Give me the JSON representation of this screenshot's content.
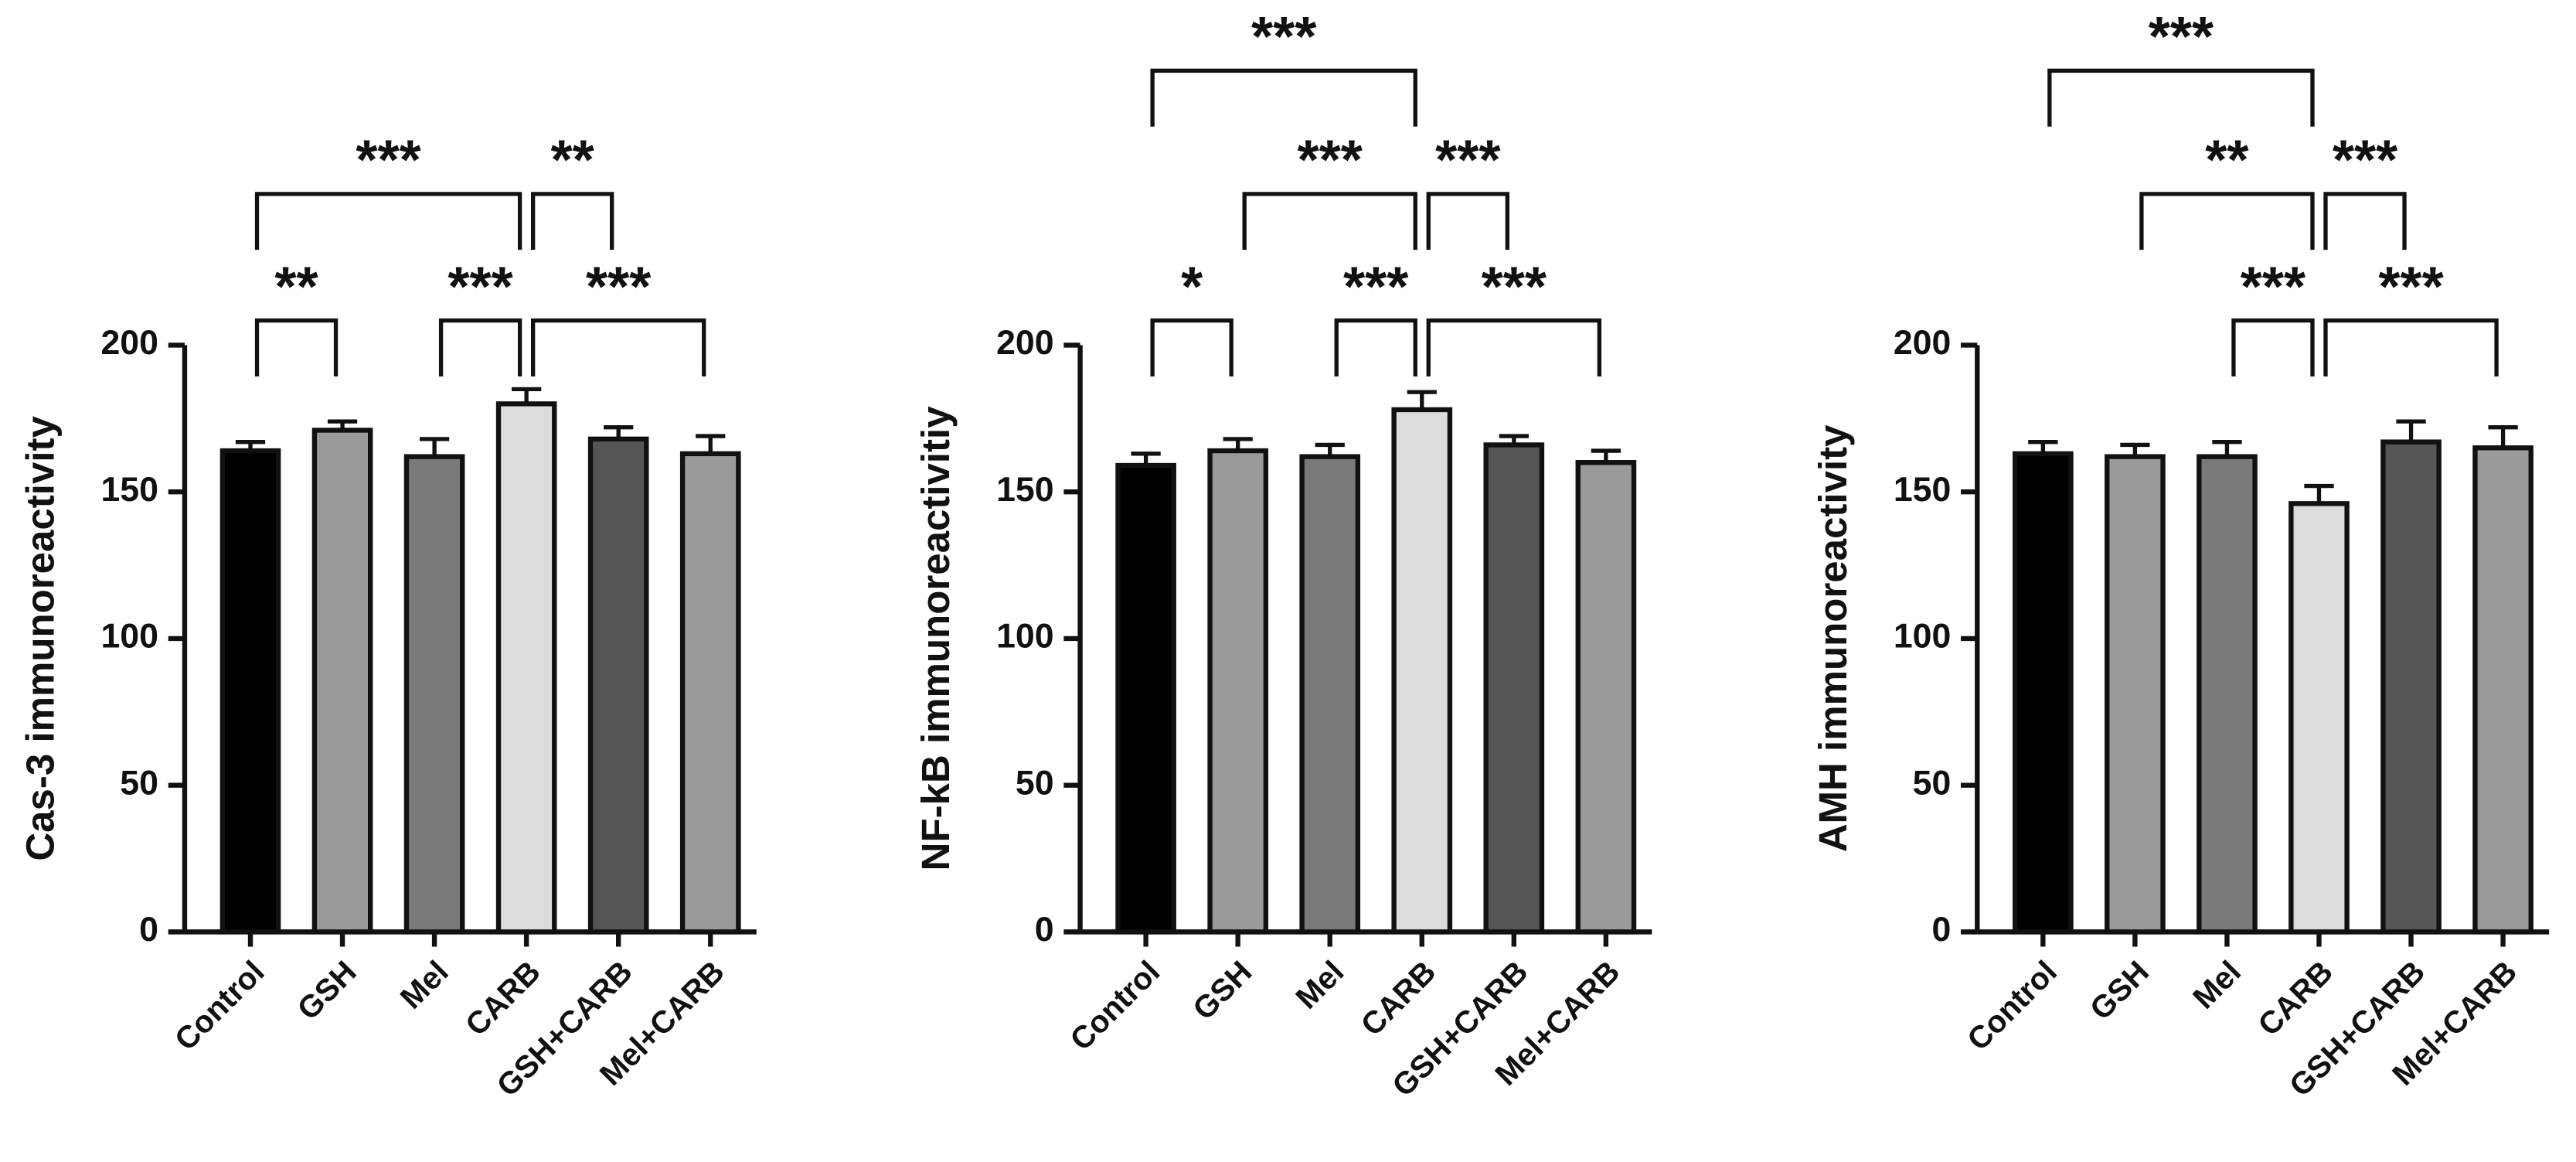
{
  "chart_data": [
    {
      "type": "bar",
      "ylabel": "Cas-3 immunoreactivity",
      "categories": [
        "Control",
        "GSH",
        "Mel",
        "CARB",
        "GSH+CARB",
        "Mel+CARB"
      ],
      "values": [
        164,
        171,
        162,
        180,
        168,
        163
      ],
      "errors": [
        3,
        3,
        6,
        5,
        4,
        6
      ],
      "colors": [
        "#000000",
        "#9a9a9a",
        "#7a7a7a",
        "#dcdcdc",
        "#555555",
        "#9a9a9a"
      ],
      "ylim": [
        0,
        200
      ],
      "yticks": [
        0,
        50,
        100,
        150,
        200
      ],
      "brackets": [
        {
          "from": 0,
          "to": 1,
          "label": "**"
        },
        {
          "from": 2,
          "to": 3,
          "label": "***"
        },
        {
          "from": 3,
          "to": 5,
          "label": "***"
        },
        {
          "from": 0,
          "to": 3,
          "label": "***"
        },
        {
          "from": 3,
          "to": 4,
          "label": "**"
        }
      ]
    },
    {
      "type": "bar",
      "ylabel": "NF-kB immunoreactivitiy",
      "categories": [
        "Control",
        "GSH",
        "Mel",
        "CARB",
        "GSH+CARB",
        "Mel+CARB"
      ],
      "values": [
        159,
        164,
        162,
        178,
        166,
        160
      ],
      "errors": [
        4,
        4,
        4,
        6,
        3,
        4
      ],
      "colors": [
        "#000000",
        "#9a9a9a",
        "#7a7a7a",
        "#dcdcdc",
        "#555555",
        "#9a9a9a"
      ],
      "ylim": [
        0,
        200
      ],
      "yticks": [
        0,
        50,
        100,
        150,
        200
      ],
      "brackets": [
        {
          "from": 0,
          "to": 1,
          "label": "*"
        },
        {
          "from": 2,
          "to": 3,
          "label": "***"
        },
        {
          "from": 3,
          "to": 5,
          "label": "***"
        },
        {
          "from": 1,
          "to": 3,
          "label": "***"
        },
        {
          "from": 3,
          "to": 4,
          "label": "***"
        },
        {
          "from": 0,
          "to": 3,
          "label": "***"
        }
      ]
    },
    {
      "type": "bar",
      "ylabel": "AMH immunoreactivity",
      "categories": [
        "Control",
        "GSH",
        "Mel",
        "CARB",
        "GSH+CARB",
        "Mel+CARB"
      ],
      "values": [
        163,
        162,
        162,
        146,
        167,
        165
      ],
      "errors": [
        4,
        4,
        5,
        6,
        7,
        7
      ],
      "colors": [
        "#000000",
        "#9a9a9a",
        "#7a7a7a",
        "#dcdcdc",
        "#555555",
        "#9a9a9a"
      ],
      "ylim": [
        0,
        200
      ],
      "yticks": [
        0,
        50,
        100,
        150,
        200
      ],
      "brackets": [
        {
          "from": 2,
          "to": 3,
          "label": "***"
        },
        {
          "from": 3,
          "to": 5,
          "label": "***"
        },
        {
          "from": 1,
          "to": 3,
          "label": "**"
        },
        {
          "from": 3,
          "to": 4,
          "label": "***"
        },
        {
          "from": 0,
          "to": 3,
          "label": "***"
        }
      ]
    }
  ]
}
